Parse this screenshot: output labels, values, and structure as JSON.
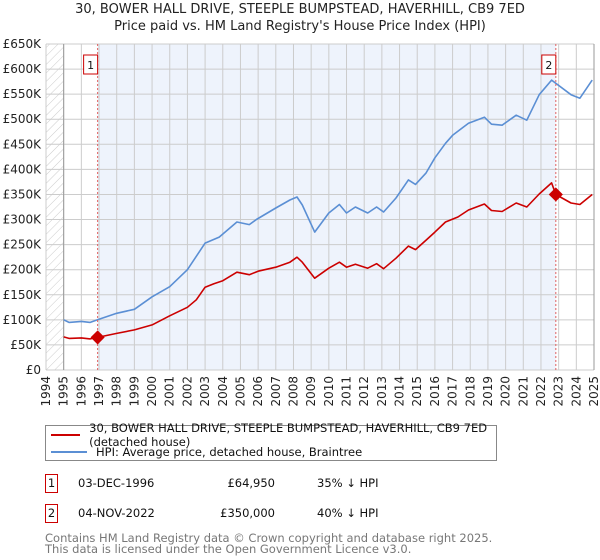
{
  "title_line1": "30, BOWER HALL DRIVE, STEEPLE BUMPSTEAD, HAVERHILL, CB9 7ED",
  "title_line2": "Price paid vs. HM Land Registry's House Price Index (HPI)",
  "chart_data": {
    "type": "line",
    "title": "30, BOWER HALL DRIVE, STEEPLE BUMPSTEAD, HAVERHILL, CB9 7ED — Price paid vs. HM Land Registry's House Price Index (HPI)",
    "xlim": [
      1994,
      2025
    ],
    "ylim": [
      0,
      650000
    ],
    "x_ticks": [
      "1994",
      "1995",
      "1996",
      "1997",
      "1998",
      "1999",
      "2000",
      "2001",
      "2002",
      "2003",
      "2004",
      "2005",
      "2006",
      "2007",
      "2008",
      "2009",
      "2010",
      "2011",
      "2012",
      "2013",
      "2014",
      "2015",
      "2016",
      "2017",
      "2018",
      "2019",
      "2020",
      "2021",
      "2022",
      "2023",
      "2024",
      "2025"
    ],
    "y_ticks": [
      {
        "v": 0,
        "label": "£0"
      },
      {
        "v": 50000,
        "label": "£50K"
      },
      {
        "v": 100000,
        "label": "£100K"
      },
      {
        "v": 150000,
        "label": "£150K"
      },
      {
        "v": 200000,
        "label": "£200K"
      },
      {
        "v": 250000,
        "label": "£250K"
      },
      {
        "v": 300000,
        "label": "£300K"
      },
      {
        "v": 350000,
        "label": "£350K"
      },
      {
        "v": 400000,
        "label": "£400K"
      },
      {
        "v": 450000,
        "label": "£450K"
      },
      {
        "v": 500000,
        "label": "£500K"
      },
      {
        "v": 550000,
        "label": "£550K"
      },
      {
        "v": 600000,
        "label": "£600K"
      },
      {
        "v": 650000,
        "label": "£650K"
      }
    ],
    "grid": true,
    "legend_placement": "below",
    "series": [
      {
        "name": "30, BOWER HALL DRIVE, STEEPLE BUMPSTEAD, HAVERHILL, CB9 7ED (detached house)",
        "color": "#cc0000",
        "x": [
          1995,
          1995.3,
          1996,
          1996.5,
          1996.92,
          1998,
          1999,
          2000,
          2001,
          2002,
          2002.5,
          2003,
          2003.5,
          2004,
          2004.8,
          2005.5,
          2006,
          2007,
          2007.8,
          2008.2,
          2008.5,
          2009.2,
          2010,
          2010.6,
          2011,
          2011.5,
          2012.2,
          2012.7,
          2013.1,
          2013.8,
          2014.5,
          2014.9,
          2015.5,
          2016,
          2016.6,
          2017.3,
          2017.9,
          2018.8,
          2019.2,
          2019.8,
          2020.6,
          2021.2,
          2021.9,
          2022.6,
          2022.84,
          2023.7,
          2024.2,
          2024.9
        ],
        "y": [
          66000,
          63000,
          64000,
          62000,
          64950,
          73000,
          80000,
          90000,
          108000,
          125000,
          140000,
          165000,
          172000,
          178000,
          195000,
          190000,
          197000,
          205000,
          215000,
          225000,
          215000,
          183000,
          203000,
          215000,
          205000,
          211000,
          203000,
          212000,
          202000,
          223000,
          247000,
          240000,
          259000,
          275000,
          295000,
          305000,
          319000,
          331000,
          318000,
          316000,
          333000,
          325000,
          351000,
          373000,
          350000,
          333000,
          330000,
          350000
        ]
      },
      {
        "name": "HPI: Average price, detached house, Braintree",
        "color": "#5b8fd4",
        "x": [
          1995,
          1995.3,
          1996,
          1996.5,
          1997,
          1998,
          1999,
          2000,
          2001,
          2002,
          2003,
          2003.8,
          2004.8,
          2005.5,
          2005.9,
          2007,
          2007.8,
          2008.2,
          2008.5,
          2009.2,
          2010,
          2010.6,
          2011,
          2011.5,
          2012.2,
          2012.7,
          2013.1,
          2013.8,
          2014.5,
          2014.9,
          2015.5,
          2016,
          2016.6,
          2017,
          2017.9,
          2018.8,
          2019.2,
          2019.8,
          2020.6,
          2021.2,
          2021.9,
          2022.6,
          2023.7,
          2024.2,
          2024.9
        ],
        "y": [
          100000,
          95000,
          97000,
          95000,
          101000,
          113000,
          121000,
          146000,
          166000,
          200000,
          253000,
          265000,
          295000,
          290000,
          300000,
          323000,
          339000,
          345000,
          329000,
          275000,
          313000,
          330000,
          313000,
          325000,
          313000,
          325000,
          315000,
          343000,
          379000,
          370000,
          393000,
          423000,
          452000,
          468000,
          492000,
          504000,
          490000,
          488000,
          508000,
          498000,
          549000,
          578000,
          549000,
          542000,
          578000
        ]
      }
    ],
    "annotations": [
      {
        "label": "1",
        "x": 1996.92,
        "y": 64950
      },
      {
        "label": "2",
        "x": 2022.84,
        "y": 350000
      }
    ]
  },
  "legend": {
    "property": "30, BOWER HALL DRIVE, STEEPLE BUMPSTEAD, HAVERHILL, CB9 7ED (detached house)",
    "hpi": "HPI: Average price, detached house, Braintree"
  },
  "sales": [
    {
      "num": "1",
      "date": "03-DEC-1996",
      "price": "£64,950",
      "hpi": "35% ↓ HPI"
    },
    {
      "num": "2",
      "date": "04-NOV-2022",
      "price": "£350,000",
      "hpi": "40% ↓ HPI"
    }
  ],
  "footer_line1": "Contains HM Land Registry data © Crown copyright and database right 2025.",
  "footer_line2": "This data is licensed under the Open Government Licence v3.0."
}
